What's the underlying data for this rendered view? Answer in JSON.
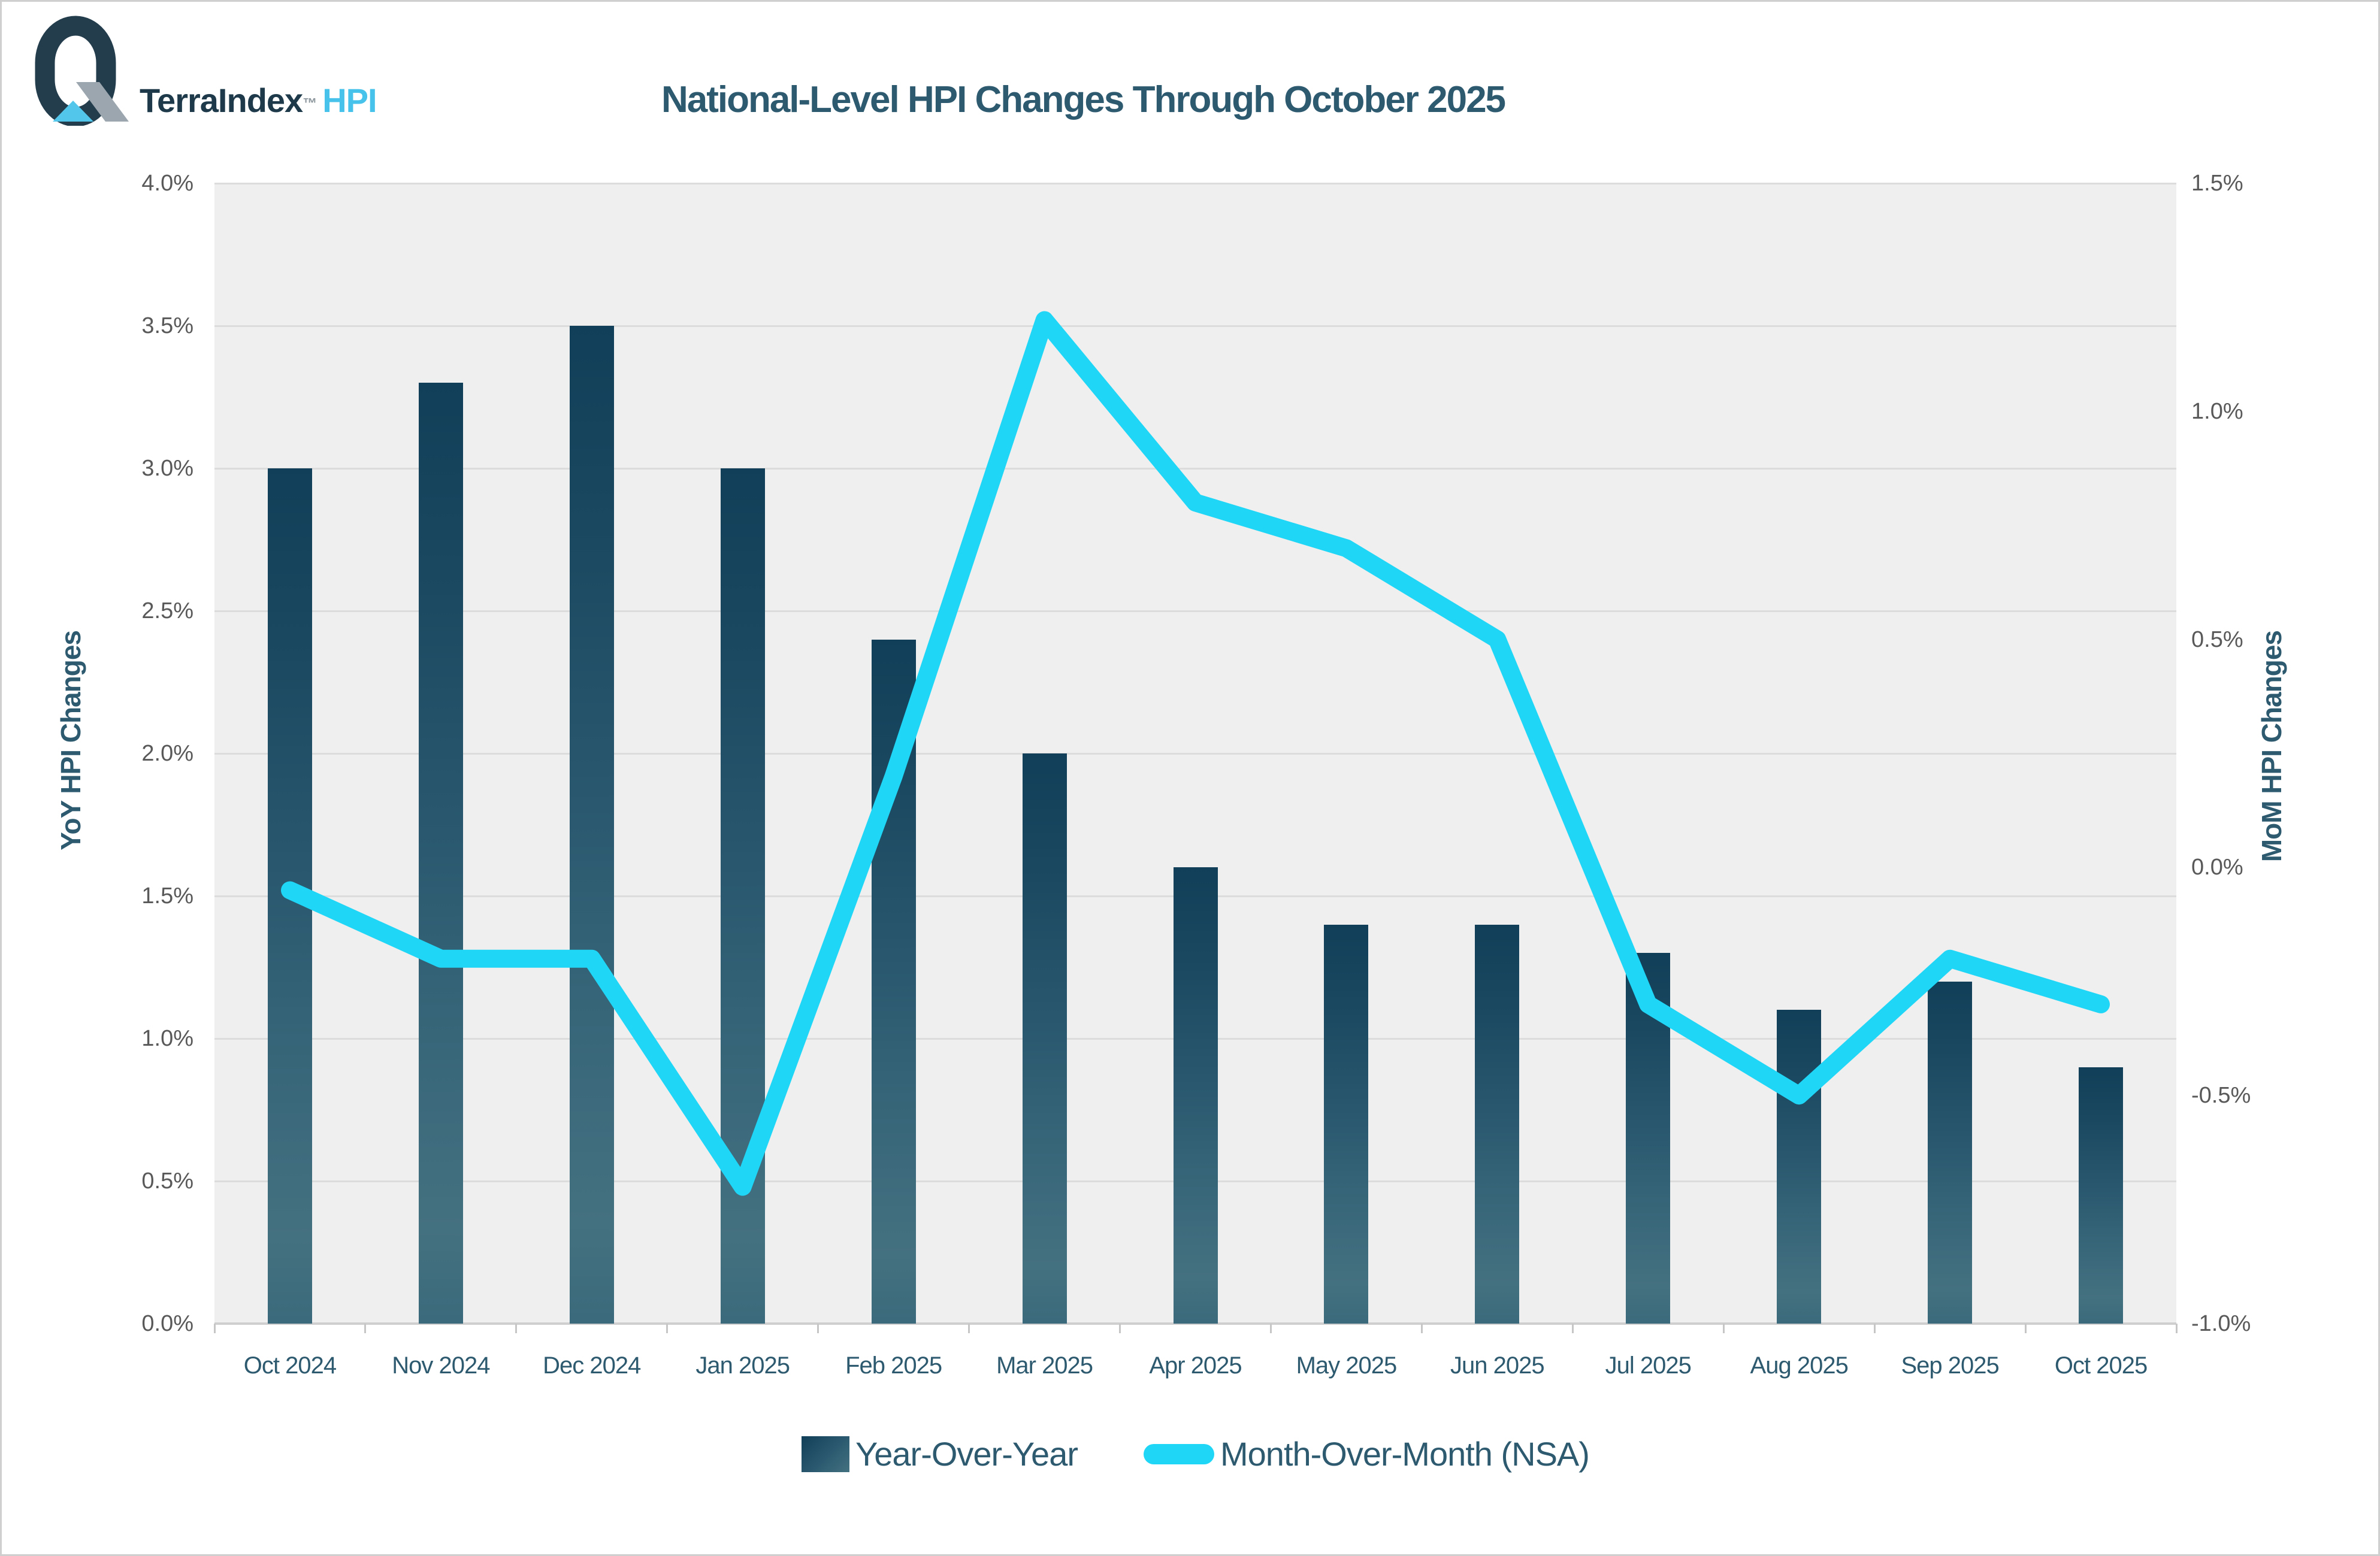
{
  "logo": {
    "brand": "TerraIndex",
    "trademark": "™",
    "product": "HPI",
    "colors": {
      "q_mark": "#243d4d",
      "triangle": "#53c7eb",
      "parallelogram": "#9ba6ae",
      "brand_text": "#1e3a4a",
      "product_text": "#47c2ea"
    }
  },
  "title": "National-Level HPI Changes Through October 2025",
  "chart_data": {
    "type": "bar",
    "subtype": "combo-bar-line-dual-axis",
    "title": "National-Level HPI Changes Through October 2025",
    "categories": [
      "Oct 2024",
      "Nov 2024",
      "Dec 2024",
      "Jan 2025",
      "Feb 2025",
      "Mar 2025",
      "Apr 2025",
      "May 2025",
      "Jun 2025",
      "Jul 2025",
      "Aug 2025",
      "Sep 2025",
      "Oct 2025"
    ],
    "series": [
      {
        "name": "Year-Over-Year",
        "type": "bar",
        "axis": "left",
        "unit": "%",
        "values": [
          3.0,
          3.3,
          3.5,
          3.0,
          2.4,
          2.0,
          1.6,
          1.4,
          1.4,
          1.3,
          1.1,
          1.2,
          0.9
        ]
      },
      {
        "name": "Month-Over-Month (NSA)",
        "type": "line",
        "axis": "right",
        "unit": "%",
        "values": [
          -0.05,
          -0.2,
          -0.2,
          -0.7,
          0.2,
          1.2,
          0.8,
          0.7,
          0.5,
          -0.3,
          -0.5,
          -0.2,
          -0.3
        ]
      }
    ],
    "left_axis": {
      "label": "YoY HPI Changes",
      "min": 0.0,
      "max": 4.0,
      "step": 0.5,
      "ticks": [
        "0.0%",
        "0.5%",
        "1.0%",
        "1.5%",
        "2.0%",
        "2.5%",
        "3.0%",
        "3.5%",
        "4.0%"
      ]
    },
    "right_axis": {
      "label": "MoM HPI Changes",
      "min": -1.0,
      "max": 1.5,
      "step": 0.5,
      "ticks": [
        "-1.0%",
        "-0.5%",
        "0.0%",
        "0.5%",
        "1.0%",
        "1.5%"
      ]
    },
    "legend": {
      "position": "bottom",
      "entries": [
        "Year-Over-Year",
        "Month-Over-Month (NSA)"
      ]
    },
    "grid": true
  },
  "colors": {
    "title_text": "#2e5a70",
    "axis_title_text": "#2e5a70",
    "tick_text": "#595959",
    "month_label_text": "#2e5a70",
    "legend_text": "#2e5a70",
    "bar_gradient_top": "#113f59",
    "bar_gradient_mid": "#2b5a70",
    "bar_gradient_bottom": "#447180",
    "line": "#1fd6f6",
    "plot_background": "#f0efef",
    "gridline": "#dcdcdc",
    "axis_line": "#cfcfcf",
    "frame_border": "#cfcfcf"
  }
}
